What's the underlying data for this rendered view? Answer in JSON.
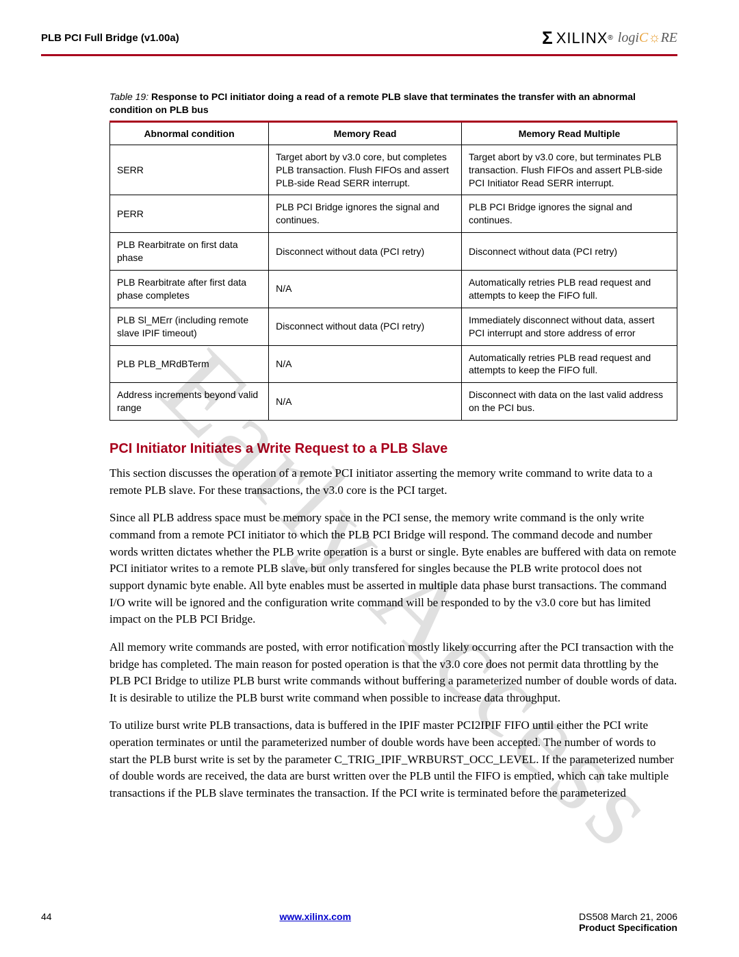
{
  "header": {
    "title": "PLB PCI Full Bridge (v1.00a)",
    "logo_text": "XILINX",
    "logicore": "logiCORE"
  },
  "table": {
    "caption_prefix": "Table  19:",
    "caption_bold": "Response to PCI initiator doing a read of a remote PLB slave that terminates the transfer with an abnormal condition on PLB bus",
    "columns": [
      "Abnormal condition",
      "Memory Read",
      "Memory Read Multiple"
    ],
    "rows": [
      [
        "SERR",
        "Target abort by v3.0 core, but completes PLB transaction. Flush FIFOs and assert PLB-side Read SERR interrupt.",
        "Target abort by v3.0 core, but terminates PLB transaction. Flush FIFOs and assert PLB-side PCI Initiator Read SERR interrupt."
      ],
      [
        "PERR",
        "PLB PCI Bridge ignores the signal and continues.",
        "PLB PCI Bridge ignores the signal and continues."
      ],
      [
        "PLB Rearbitrate on first data phase",
        "Disconnect without data (PCI retry)",
        "Disconnect without data (PCI retry)"
      ],
      [
        "PLB Rearbitrate after first data phase completes",
        "N/A",
        "Automatically retries PLB read request and attempts to keep the FIFO full."
      ],
      [
        "PLB Sl_MErr (including remote slave IPIF timeout)",
        "Disconnect without data (PCI retry)",
        "Immediately disconnect without data, assert PCI interrupt and store address of error"
      ],
      [
        "PLB PLB_MRdBTerm",
        "N/A",
        "Automatically retries PLB read request and attempts to keep the FIFO full."
      ],
      [
        "Address increments beyond valid range",
        "N/A",
        "Disconnect with data on the last valid address on the PCI bus."
      ]
    ]
  },
  "section_heading": "PCI Initiator Initiates a Write Request to a PLB Slave",
  "paragraphs": {
    "p1": "This section discusses the operation of a remote PCI initiator asserting the memory write command to write data to a remote PLB slave. For these transactions, the v3.0 core is the PCI target.",
    "p2": "Since all PLB address space must be memory space in the PCI sense, the memory write command is the only write command from a remote PCI initiator to which the PLB PCI Bridge will respond. The command decode and number words written dictates whether the PLB write operation is a burst or single. Byte enables are buffered with data on remote PCI initiator writes to a remote PLB slave, but only transfered for singles because the PLB write protocol does not support dynamic byte enable. All byte enables must be asserted in multiple data phase burst transactions. The command I/O write will be ignored and the configuration write command will be responded to by the v3.0 core but has limited impact on the PLB PCI Bridge.",
    "p3": "All memory write commands are posted, with error notification mostly likely occurring after the PCI transaction with the bridge has completed. The main reason for posted operation is that the v3.0 core does not permit data throttling by the PLB PCI Bridge to utilize PLB burst write commands without buffering a parameterized number of double words of data. It is desirable to utilize the PLB burst write command when possible to increase data throughput.",
    "p4": "To utilize burst write PLB transactions, data is buffered in the IPIF master PCI2IPIF FIFO until either the PCI write operation terminates or until the parameterized number of double words have been accepted. The number of words to start the PLB burst write is set by the parameter C_TRIG_IPIF_WRBURST_OCC_LEVEL. If the parameterized number of double words are received, the data are burst written over the PLB until the FIFO is emptied, which can take multiple transactions if the PLB slave terminates the transaction. If the PCI write is terminated before the parameterized"
  },
  "watermark": "Early Access",
  "footer": {
    "page": "44",
    "link": "www.xilinx.com",
    "doc": "DS508 March 21, 2006",
    "spec": "Product Specification"
  }
}
